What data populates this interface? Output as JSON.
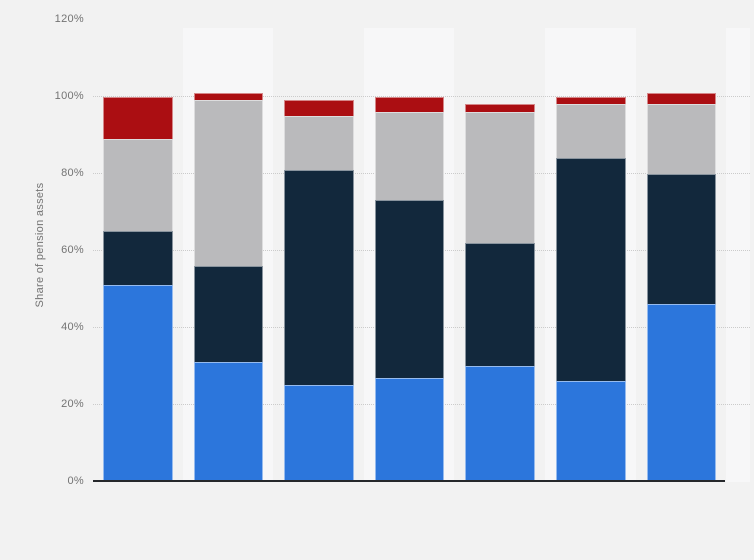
{
  "chart_data": {
    "type": "bar",
    "stacked": true,
    "orientation": "vertical",
    "n_bars": 7,
    "title_visible": false,
    "legend_visible": false,
    "x_tick_labels_visible": false,
    "ylabel": "Share of pension assets",
    "ylim": [
      0,
      120
    ],
    "ytick_step": 20,
    "ytick_labels": [
      "0%",
      "20%",
      "40%",
      "60%",
      "80%",
      "100%",
      "120%"
    ],
    "grid": "dotted horizontal lines at each 20% tick",
    "plot_bands": "alternating vertical background bands, lighter band behind bars 2, 4, 6",
    "series": [
      {
        "name": "bottom-segment",
        "key": "blue",
        "color": "#2c76dc",
        "values": [
          51,
          31,
          25,
          27,
          30,
          26,
          46
        ]
      },
      {
        "name": "second-segment",
        "key": "navy",
        "color": "#12283c",
        "values": [
          14,
          25,
          56,
          46,
          32,
          58,
          34
        ]
      },
      {
        "name": "third-segment",
        "key": "gray",
        "color": "#bababc",
        "values": [
          24,
          43,
          14,
          23,
          34,
          14,
          18
        ]
      },
      {
        "name": "top-segment",
        "key": "red",
        "color": "#ab0e12",
        "values": [
          11,
          2,
          4,
          4,
          2,
          2,
          3
        ]
      }
    ]
  },
  "colors": {
    "page_background": "#f2f2f2",
    "plot_band_light": "#f7f7f8",
    "gridline": "#cbcbcb",
    "axis_line": "#26282c",
    "axis_text": "#737373"
  }
}
